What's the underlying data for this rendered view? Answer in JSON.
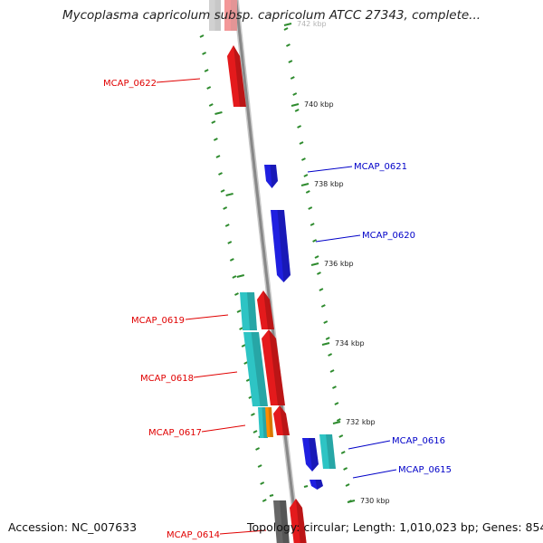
{
  "title": "Mycoplasma capricolum subsp. capricolum ATCC 27343, complete...",
  "footer": {
    "accession": "Accession: NC_007633",
    "topology": "Topology: circular; Length: 1,010,023 bp; Genes: 854"
  },
  "colors": {
    "backbone": "#888888",
    "forward_strand": "#e41a1c",
    "reverse_strand": "#1f1fe0",
    "feature_cyan": "#2ec4c4",
    "feature_orange": "#ff8c00",
    "feature_gray": "#9a9a9a",
    "tick_green": "#2e8b2e",
    "label_red": "#e00000",
    "label_blue": "#0000c8"
  },
  "scale": {
    "tick_labels": [
      "742 kbp",
      "740 kbp",
      "738 kbp",
      "736 kbp",
      "734 kbp",
      "732 kbp",
      "730 kbp"
    ]
  },
  "genes": [
    {
      "label": "MCAP_0622",
      "strand": "forward"
    },
    {
      "label": "MCAP_0621",
      "strand": "reverse"
    },
    {
      "label": "MCAP_0620",
      "strand": "reverse"
    },
    {
      "label": "MCAP_0619",
      "strand": "forward"
    },
    {
      "label": "MCAP_0618",
      "strand": "forward"
    },
    {
      "label": "MCAP_0617",
      "strand": "forward"
    },
    {
      "label": "MCAP_0616",
      "strand": "reverse"
    },
    {
      "label": "MCAP_0615",
      "strand": "reverse"
    },
    {
      "label": "MCAP_0614",
      "strand": "forward"
    }
  ]
}
